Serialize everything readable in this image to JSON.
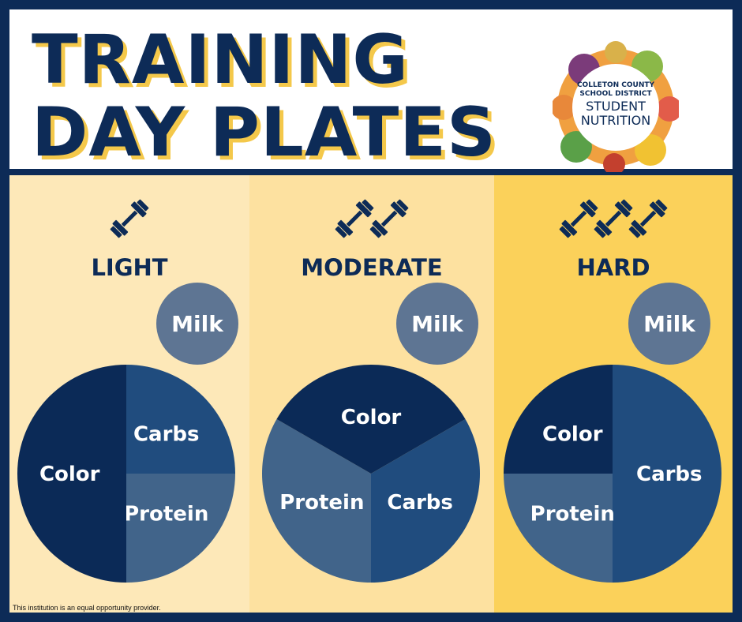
{
  "title": {
    "line1": "TRAINING",
    "line2": "DAY PLATES"
  },
  "logo": {
    "line1": "COLLETON COUNTY",
    "line2": "SCHOOL DISTRICT",
    "line3": "STUDENT",
    "line4": "NUTRITION"
  },
  "footer": "This institution is an equal opportunity provider.",
  "colors": {
    "navy": "#0d2b57",
    "dark": "#0b2a57",
    "mid": "#204c7e",
    "light": "#41648a",
    "milk": "#5e7593",
    "gold": "#f4c84a"
  },
  "chart_data": [
    {
      "type": "pie",
      "title": "LIGHT",
      "dumbbells": 1,
      "milk_label": "Milk",
      "slices": [
        {
          "label": "Carbs",
          "value": 25
        },
        {
          "label": "Protein",
          "value": 25
        },
        {
          "label": "Color",
          "value": 50
        }
      ]
    },
    {
      "type": "pie",
      "title": "MODERATE",
      "dumbbells": 2,
      "milk_label": "Milk",
      "slices": [
        {
          "label": "Carbs",
          "value": 33.3
        },
        {
          "label": "Protein",
          "value": 33.3
        },
        {
          "label": "Color",
          "value": 33.3
        }
      ]
    },
    {
      "type": "pie",
      "title": "HARD",
      "dumbbells": 3,
      "milk_label": "Milk",
      "slices": [
        {
          "label": "Carbs",
          "value": 50
        },
        {
          "label": "Protein",
          "value": 25
        },
        {
          "label": "Color",
          "value": 25
        }
      ]
    }
  ]
}
